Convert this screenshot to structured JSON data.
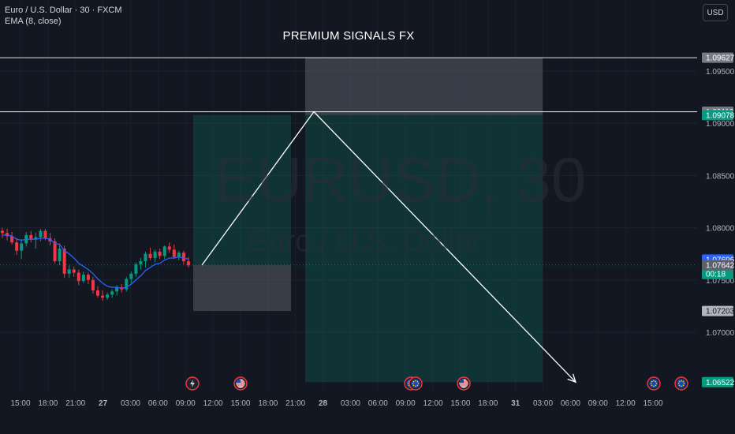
{
  "legend": {
    "symbol_line": "Euro / U.S. Dollar · 30 · FXCM",
    "indicator_line": "EMA (8, close)"
  },
  "currency_button": "USD",
  "title": "PREMIUM SIGNALS FX",
  "watermark": {
    "symbol": "EURUSD, 30",
    "name": "Euro / U.S. Dollar"
  },
  "chart_data": {
    "type": "candlestick",
    "y_axis": {
      "ylim": [
        1.0635,
        1.098
      ],
      "ticks": [
        1.07,
        1.075,
        1.08,
        1.085,
        1.09,
        1.095
      ],
      "tick_labels": [
        "1.07000",
        "1.07500",
        "1.08000",
        "1.08500",
        "1.09000",
        "1.09500"
      ]
    },
    "x_axis": {
      "tick_labels": [
        "15:00",
        "18:00",
        "21:00",
        "27",
        "03:00",
        "06:00",
        "09:00",
        "12:00",
        "15:00",
        "18:00",
        "21:00",
        "28",
        "03:00",
        "06:00",
        "09:00",
        "12:00",
        "15:00",
        "18:00",
        "31",
        "03:00",
        "06:00",
        "09:00",
        "12:00",
        "15:00"
      ],
      "bold_ticks": [
        "27",
        "28",
        "31"
      ]
    },
    "price_labels": [
      {
        "value": 1.09627,
        "text": "1.09627",
        "bg": "#787b86",
        "fg": "#ffffff"
      },
      {
        "value": 1.0911,
        "text": "1.09110",
        "bg": "#787b86",
        "fg": "#ffffff"
      },
      {
        "value": 1.09078,
        "text": "1.09078",
        "bg": "#089981",
        "fg": "#ffffff"
      },
      {
        "value": 1.07696,
        "text": "1.07696",
        "bg": "#2962ff",
        "fg": "#ffffff"
      },
      {
        "value": 1.07644,
        "text": "1.07644",
        "sub": "00:18",
        "bg": "#089981",
        "fg": "#ffffff"
      },
      {
        "value": 1.07642,
        "text": "1.07642",
        "bg": "#5d606b",
        "fg": "#ffffff"
      },
      {
        "value": 1.07203,
        "text": "1.07203",
        "bg": "#b2b5be",
        "fg": "#131722"
      },
      {
        "value": 1.06522,
        "text": "1.06522",
        "bg": "#089981",
        "fg": "#ffffff"
      }
    ],
    "horizontal_lines": [
      1.09627,
      1.0911
    ],
    "long_position": {
      "entry": 1.07642,
      "stop": 1.07203,
      "target": 1.09078
    },
    "short_position": {
      "entry": 1.09078,
      "stop": 1.09627,
      "target": 1.06522
    },
    "projection_path": [
      1.07642,
      1.0911,
      1.06522
    ],
    "candles": [
      {
        "o": 1.0797,
        "h": 1.08,
        "l": 1.079,
        "c": 1.0795
      },
      {
        "o": 1.0795,
        "h": 1.0799,
        "l": 1.0788,
        "c": 1.0792
      },
      {
        "o": 1.0792,
        "h": 1.0796,
        "l": 1.0784,
        "c": 1.0786
      },
      {
        "o": 1.0786,
        "h": 1.079,
        "l": 1.0774,
        "c": 1.0778
      },
      {
        "o": 1.0778,
        "h": 1.0789,
        "l": 1.077,
        "c": 1.0785
      },
      {
        "o": 1.0785,
        "h": 1.0796,
        "l": 1.0782,
        "c": 1.0793
      },
      {
        "o": 1.0793,
        "h": 1.0797,
        "l": 1.0786,
        "c": 1.0789
      },
      {
        "o": 1.0789,
        "h": 1.0795,
        "l": 1.078,
        "c": 1.0791
      },
      {
        "o": 1.0791,
        "h": 1.0799,
        "l": 1.0787,
        "c": 1.0797
      },
      {
        "o": 1.0797,
        "h": 1.0799,
        "l": 1.0788,
        "c": 1.079
      },
      {
        "o": 1.079,
        "h": 1.0795,
        "l": 1.0783,
        "c": 1.0787
      },
      {
        "o": 1.0787,
        "h": 1.079,
        "l": 1.0766,
        "c": 1.0768
      },
      {
        "o": 1.0768,
        "h": 1.0785,
        "l": 1.0764,
        "c": 1.078
      },
      {
        "o": 1.078,
        "h": 1.0783,
        "l": 1.0752,
        "c": 1.0756
      },
      {
        "o": 1.0756,
        "h": 1.0764,
        "l": 1.0752,
        "c": 1.076
      },
      {
        "o": 1.076,
        "h": 1.0763,
        "l": 1.0753,
        "c": 1.0757
      },
      {
        "o": 1.0757,
        "h": 1.076,
        "l": 1.0745,
        "c": 1.0749
      },
      {
        "o": 1.0749,
        "h": 1.0758,
        "l": 1.0747,
        "c": 1.0755
      },
      {
        "o": 1.0755,
        "h": 1.0757,
        "l": 1.0746,
        "c": 1.075
      },
      {
        "o": 1.075,
        "h": 1.0753,
        "l": 1.0737,
        "c": 1.074
      },
      {
        "o": 1.074,
        "h": 1.0744,
        "l": 1.0733,
        "c": 1.0735
      },
      {
        "o": 1.0735,
        "h": 1.074,
        "l": 1.073,
        "c": 1.0733
      },
      {
        "o": 1.0733,
        "h": 1.0738,
        "l": 1.0731,
        "c": 1.0736
      },
      {
        "o": 1.0736,
        "h": 1.0741,
        "l": 1.0733,
        "c": 1.0739
      },
      {
        "o": 1.0739,
        "h": 1.0745,
        "l": 1.0735,
        "c": 1.0743
      },
      {
        "o": 1.0743,
        "h": 1.0746,
        "l": 1.0738,
        "c": 1.0741
      },
      {
        "o": 1.0741,
        "h": 1.0753,
        "l": 1.0739,
        "c": 1.0751
      },
      {
        "o": 1.0751,
        "h": 1.0758,
        "l": 1.0747,
        "c": 1.0756
      },
      {
        "o": 1.0756,
        "h": 1.0767,
        "l": 1.0753,
        "c": 1.0765
      },
      {
        "o": 1.0765,
        "h": 1.0771,
        "l": 1.076,
        "c": 1.0768
      },
      {
        "o": 1.0768,
        "h": 1.0777,
        "l": 1.0762,
        "c": 1.0775
      },
      {
        "o": 1.0775,
        "h": 1.0781,
        "l": 1.0769,
        "c": 1.0771
      },
      {
        "o": 1.0771,
        "h": 1.0779,
        "l": 1.0767,
        "c": 1.0777
      },
      {
        "o": 1.0777,
        "h": 1.078,
        "l": 1.077,
        "c": 1.0773
      },
      {
        "o": 1.0773,
        "h": 1.0783,
        "l": 1.077,
        "c": 1.0782
      },
      {
        "o": 1.0782,
        "h": 1.0786,
        "l": 1.0776,
        "c": 1.0779
      },
      {
        "o": 1.0779,
        "h": 1.0784,
        "l": 1.077,
        "c": 1.0772
      },
      {
        "o": 1.0772,
        "h": 1.0778,
        "l": 1.0769,
        "c": 1.0776
      },
      {
        "o": 1.0776,
        "h": 1.0778,
        "l": 1.0765,
        "c": 1.0768
      },
      {
        "o": 1.0768,
        "h": 1.0772,
        "l": 1.0762,
        "c": 1.0764
      }
    ],
    "ema": [
      1.0793,
      1.0793,
      1.0792,
      1.0789,
      1.0788,
      1.0789,
      1.0789,
      1.0789,
      1.079,
      1.079,
      1.0789,
      1.0785,
      1.0784,
      1.0778,
      1.0775,
      1.0771,
      1.0766,
      1.0763,
      1.076,
      1.0756,
      1.0751,
      1.0747,
      1.0744,
      1.0743,
      1.0743,
      1.0742,
      1.0743,
      1.0746,
      1.075,
      1.0754,
      1.0759,
      1.0762,
      1.0765,
      1.0766,
      1.0769,
      1.0771,
      1.0771,
      1.0772,
      1.0771,
      1.077
    ],
    "events": [
      {
        "icon": "lightning-icon",
        "tick": "09:00"
      },
      {
        "icon": "us-flag-icon",
        "tick": "15:00"
      },
      {
        "icon": "eu-flag-icon",
        "tick": "09:00"
      },
      {
        "icon": "us-flag-icon",
        "tick": "15:00"
      },
      {
        "icon": "eu-flag-icon",
        "tick": "12:00"
      },
      {
        "icon": "eu-flag-icon",
        "tick": "15:00"
      }
    ],
    "colors": {
      "background": "#131722",
      "bull": "#089981",
      "bear": "#f23645",
      "ema": "#2962ff",
      "profit_zone": "#089981",
      "loss_zone": "#787b86",
      "axis_text": "#b2b5be"
    }
  }
}
